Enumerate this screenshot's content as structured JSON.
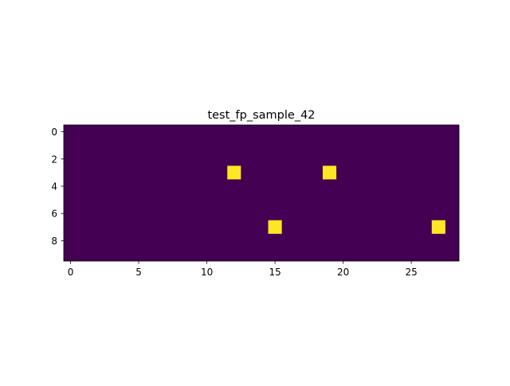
{
  "chart_data": {
    "type": "heatmap",
    "title": "test_fp_sample_42",
    "xlabel": "",
    "ylabel": "",
    "n_rows": 10,
    "n_cols": 29,
    "xlim": [
      -0.5,
      28.5
    ],
    "ylim": [
      9.5,
      -0.5
    ],
    "x_ticks": [
      0,
      5,
      10,
      15,
      20,
      25
    ],
    "y_ticks": [
      0,
      2,
      4,
      6,
      8
    ],
    "background_value": 0,
    "background_color": "#440154",
    "highlight_color": "#fde725",
    "cells": [
      {
        "row": 3,
        "col": 12,
        "value": 1
      },
      {
        "row": 3,
        "col": 19,
        "value": 1
      },
      {
        "row": 7,
        "col": 15,
        "value": 1
      },
      {
        "row": 7,
        "col": 27,
        "value": 1
      }
    ],
    "grid": false
  }
}
